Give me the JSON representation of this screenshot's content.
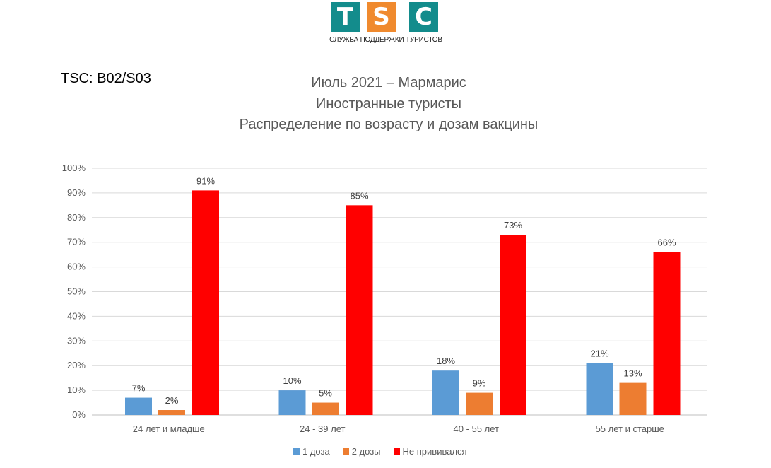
{
  "logo": {
    "letters": [
      "T",
      "S",
      "C"
    ],
    "colors": [
      "#138C8C",
      "#F08A2E",
      "#138C8C"
    ],
    "subtitle": "СЛУЖБА ПОДДЕРЖКИ ТУРИСТОВ"
  },
  "code": "TSC: B02/S03",
  "chart_data": {
    "type": "bar",
    "title": [
      "Июль 2021 – Мармарис",
      "Иностранные туристы",
      "Распределение по возрасту и дозам вакцины"
    ],
    "categories": [
      "24 лет и младше",
      "24 - 39 лет",
      "40 - 55 лет",
      "55 лет и старше"
    ],
    "series": [
      {
        "name": "1 доза",
        "color": "#5B9BD5",
        "values": [
          7,
          10,
          18,
          21
        ]
      },
      {
        "name": "2 дозы",
        "color": "#ED7D31",
        "values": [
          2,
          5,
          9,
          13
        ]
      },
      {
        "name": "Не прививался",
        "color": "#FF0000",
        "values": [
          91,
          85,
          73,
          66
        ]
      }
    ],
    "ylim": [
      0,
      100
    ],
    "yticks": [
      "0%",
      "10%",
      "20%",
      "30%",
      "40%",
      "50%",
      "60%",
      "70%",
      "80%",
      "90%",
      "100%"
    ],
    "grid": true,
    "legend": "bottom"
  }
}
